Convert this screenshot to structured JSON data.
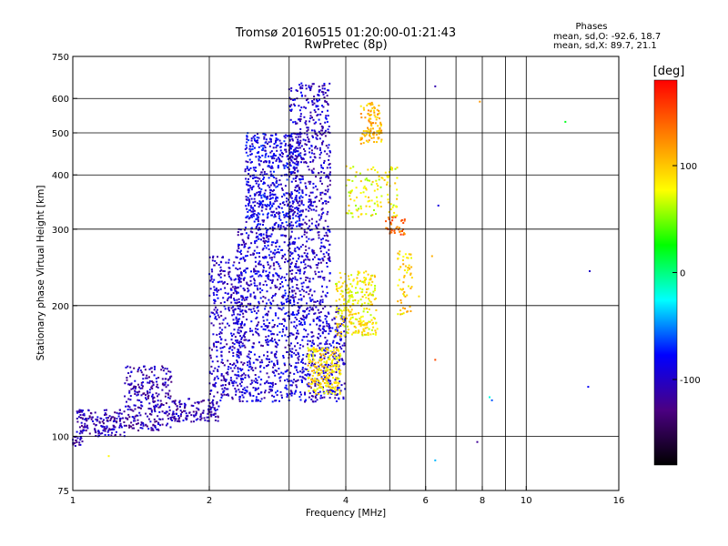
{
  "chart_data": {
    "type": "scatter",
    "title": "Tromsø 20160515 01:20:00-01:21:43",
    "subtitle": "RwPretec (8p)",
    "xlabel": "Frequency [MHz]",
    "ylabel": "Stationary phase Virtual Height [km]",
    "x_scale": "log",
    "y_scale": "log",
    "xlim": [
      1,
      16
    ],
    "ylim": [
      75,
      750
    ],
    "x_ticks": [
      1,
      2,
      4,
      6,
      8,
      10,
      16
    ],
    "x_grid": [
      2,
      3,
      4,
      5,
      6,
      7,
      8,
      9,
      10
    ],
    "y_ticks": [
      75,
      100,
      200,
      300,
      400,
      500,
      600,
      750
    ],
    "y_grid": [
      100,
      200,
      300,
      400,
      500,
      600
    ],
    "grid": true,
    "stats": {
      "heading": "Phases",
      "line1": "mean, sd,O: -92.6, 18.7",
      "line2": "mean, sd,X:  89.7, 21.1"
    },
    "colorbar": {
      "label": "[deg]",
      "range": [
        -180,
        180
      ],
      "ticks": [
        100,
        0,
        -100
      ],
      "colors": [
        "#000000",
        "#4b0082",
        "#0000ff",
        "#00ffff",
        "#00ff00",
        "#ffff00",
        "#ff8000",
        "#ff0000"
      ]
    },
    "clusters": [
      {
        "x": [
          1.0,
          1.05
        ],
        "y": [
          95,
          100
        ],
        "phase": -105,
        "n": 20
      },
      {
        "x": [
          1.02,
          1.3
        ],
        "y": [
          100,
          115
        ],
        "phase": -108,
        "n": 160
      },
      {
        "x": [
          1.3,
          1.65
        ],
        "y": [
          103,
          145
        ],
        "phase": -110,
        "n": 280
      },
      {
        "x": [
          1.65,
          2.1
        ],
        "y": [
          108,
          122
        ],
        "phase": -108,
        "n": 140
      },
      {
        "x": [
          2.0,
          2.4
        ],
        "y": [
          120,
          260
        ],
        "phase": -100,
        "n": 380
      },
      {
        "x": [
          2.3,
          3.1
        ],
        "y": [
          120,
          300
        ],
        "phase": -95,
        "n": 750
      },
      {
        "x": [
          2.4,
          3.2
        ],
        "y": [
          300,
          500
        ],
        "phase": -88,
        "n": 600
      },
      {
        "x": [
          3.0,
          3.7
        ],
        "y": [
          200,
          650
        ],
        "phase": -100,
        "n": 650
      },
      {
        "x": [
          3.1,
          4.0
        ],
        "y": [
          120,
          200
        ],
        "phase": -95,
        "n": 420
      },
      {
        "x": [
          3.3,
          3.9
        ],
        "y": [
          125,
          160
        ],
        "phase": 90,
        "n": 220
      },
      {
        "x": [
          3.8,
          4.7
        ],
        "y": [
          170,
          240
        ],
        "phase": 85,
        "n": 260
      },
      {
        "x": [
          4.3,
          4.8
        ],
        "y": [
          470,
          590
        ],
        "phase": 105,
        "n": 110
      },
      {
        "x": [
          4.0,
          5.2
        ],
        "y": [
          320,
          420
        ],
        "phase": 80,
        "n": 120
      },
      {
        "x": [
          4.9,
          5.4
        ],
        "y": [
          290,
          320
        ],
        "phase": 140,
        "n": 40
      },
      {
        "x": [
          5.2,
          5.6
        ],
        "y": [
          190,
          270
        ],
        "phase": 95,
        "n": 60
      }
    ],
    "outliers": [
      {
        "x": 6.3,
        "y": 640,
        "phase": -110
      },
      {
        "x": 6.4,
        "y": 340,
        "phase": -90
      },
      {
        "x": 7.9,
        "y": 590,
        "phase": 120
      },
      {
        "x": 8.3,
        "y": 123,
        "phase": -20
      },
      {
        "x": 8.4,
        "y": 121,
        "phase": -60
      },
      {
        "x": 12.2,
        "y": 530,
        "phase": 20
      },
      {
        "x": 13.8,
        "y": 240,
        "phase": -100
      },
      {
        "x": 13.7,
        "y": 130,
        "phase": -80
      },
      {
        "x": 6.3,
        "y": 88,
        "phase": -40
      },
      {
        "x": 7.8,
        "y": 97,
        "phase": -120
      },
      {
        "x": 6.3,
        "y": 150,
        "phase": 150
      },
      {
        "x": 6.2,
        "y": 260,
        "phase": 110
      },
      {
        "x": 1.2,
        "y": 90,
        "phase": 80
      },
      {
        "x": 5.8,
        "y": 210,
        "phase": 90
      }
    ]
  }
}
